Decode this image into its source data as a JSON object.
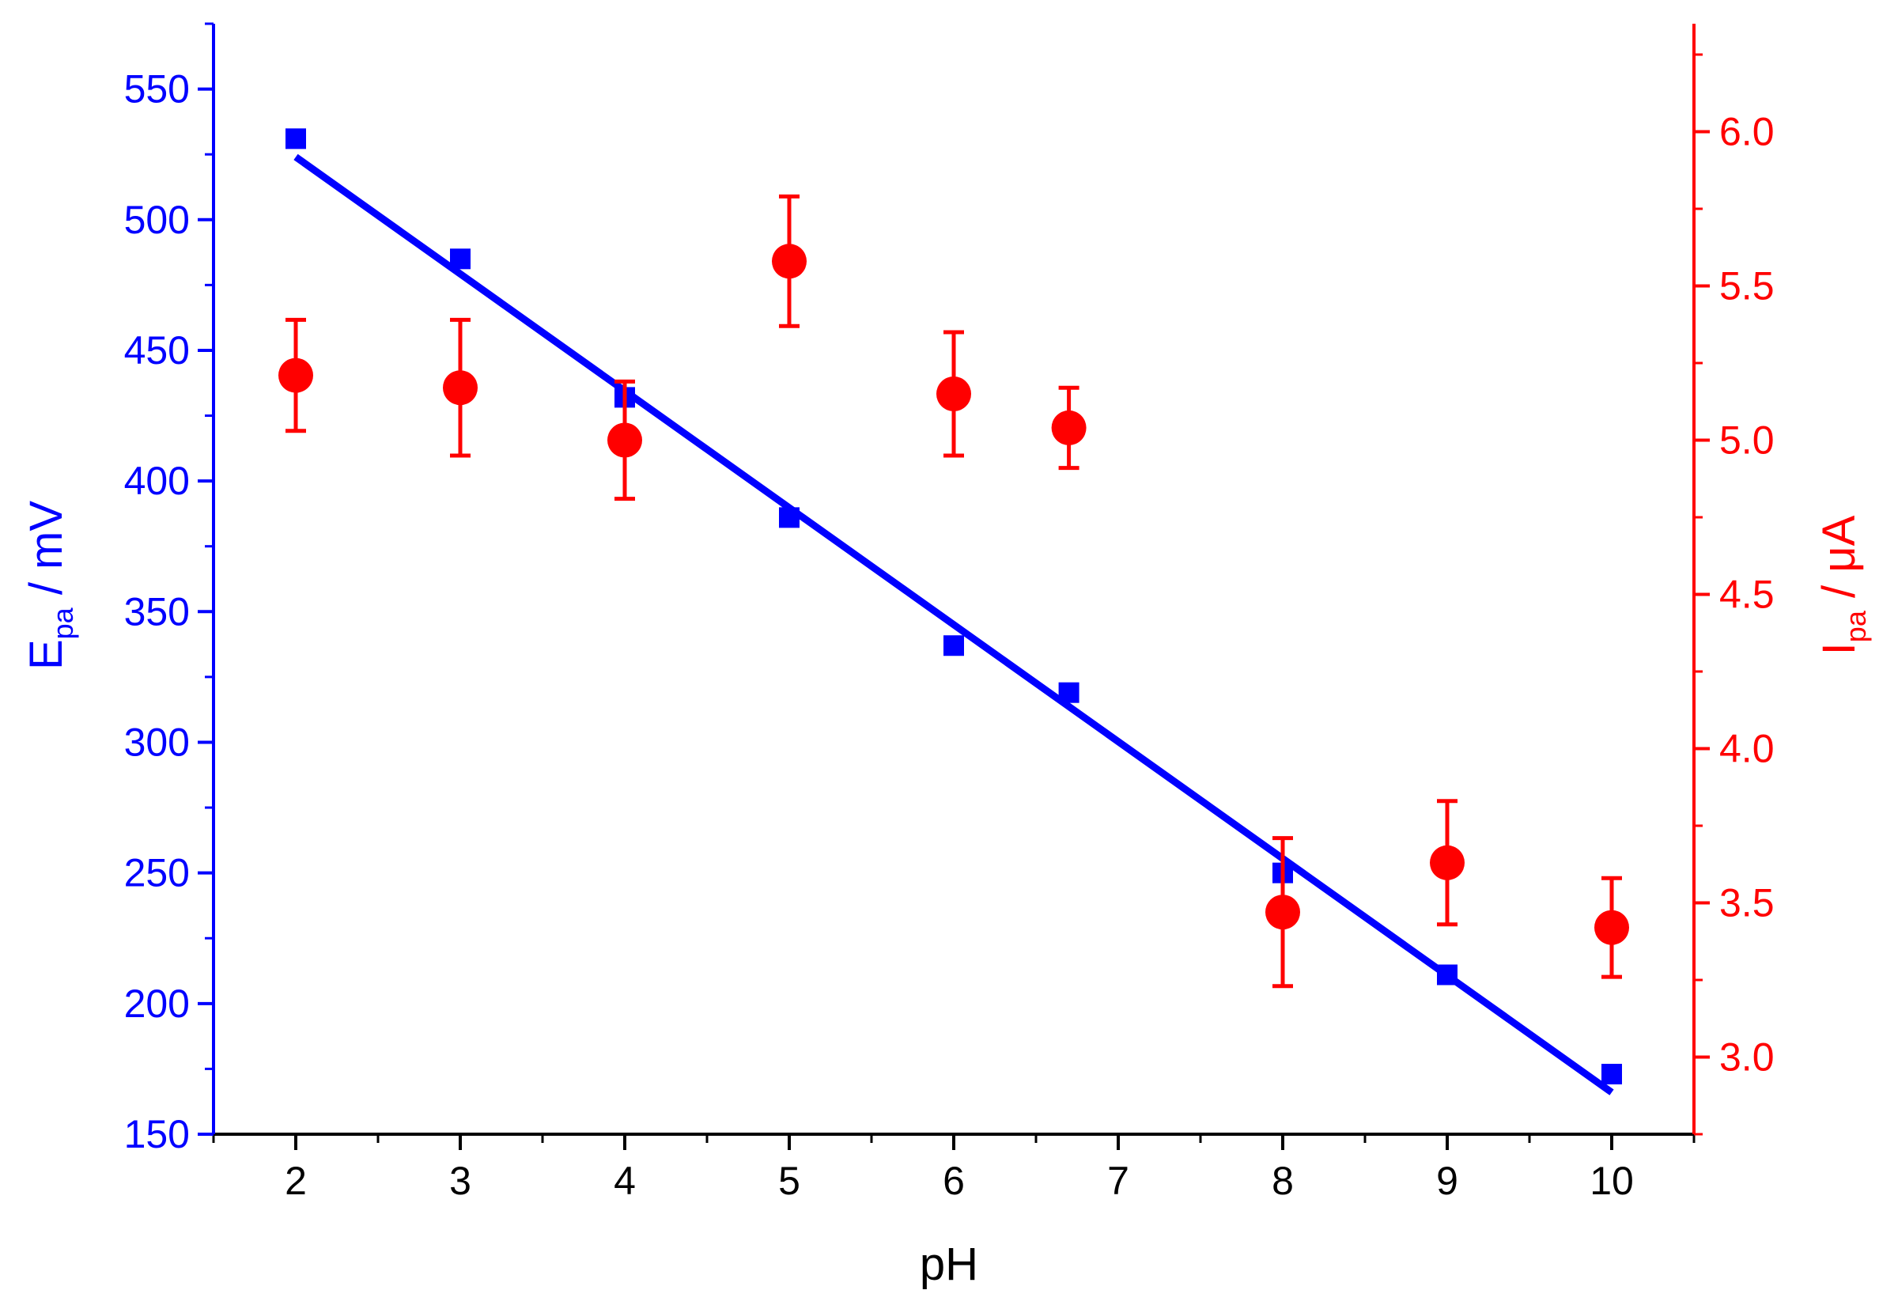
{
  "chart_data": {
    "type": "scatter",
    "title": "",
    "x_axis": {
      "label": "pH",
      "range": [
        1.5,
        10.5
      ],
      "major_ticks": [
        2,
        3,
        4,
        5,
        6,
        7,
        8,
        9,
        10
      ],
      "color": "#000000"
    },
    "y_left": {
      "label_main": "E",
      "label_sub": "pa",
      "label_unit": " / mV",
      "range": [
        150,
        575
      ],
      "major_ticks": [
        150,
        200,
        250,
        300,
        350,
        400,
        450,
        500,
        550
      ],
      "color": "#0000FF"
    },
    "y_right": {
      "label_main": "I",
      "label_sub": "pa",
      "label_unit": " / μA",
      "range": [
        2.75,
        6.35
      ],
      "major_ticks": [
        3.0,
        3.5,
        4.0,
        4.5,
        5.0,
        5.5,
        6.0
      ],
      "tick_labels": [
        "3.0",
        "3.5",
        "4.0",
        "4.5",
        "5.0",
        "5.5",
        "6.0"
      ],
      "color": "#FF0000"
    },
    "grid": false,
    "series": [
      {
        "axis": "left",
        "marker": "square",
        "color": "#0000FF",
        "x": [
          2,
          3,
          4,
          5,
          6,
          6.7,
          8,
          9,
          10
        ],
        "y": [
          531,
          485,
          432,
          386,
          337,
          319,
          250,
          211,
          173
        ]
      },
      {
        "axis": "left",
        "marker": "line",
        "kind": "linear-fit",
        "color": "#0000FF",
        "x": [
          2,
          10
        ],
        "y": [
          524,
          166
        ]
      },
      {
        "axis": "right",
        "marker": "circle",
        "color": "#FF0000",
        "x": [
          2,
          3,
          4,
          5,
          6,
          6.7,
          8,
          9,
          10
        ],
        "y": [
          5.21,
          5.17,
          5.0,
          5.58,
          5.15,
          5.04,
          3.47,
          3.63,
          3.42
        ],
        "error": [
          0.18,
          0.22,
          0.19,
          0.21,
          0.2,
          0.13,
          0.24,
          0.2,
          0.16
        ]
      }
    ]
  }
}
